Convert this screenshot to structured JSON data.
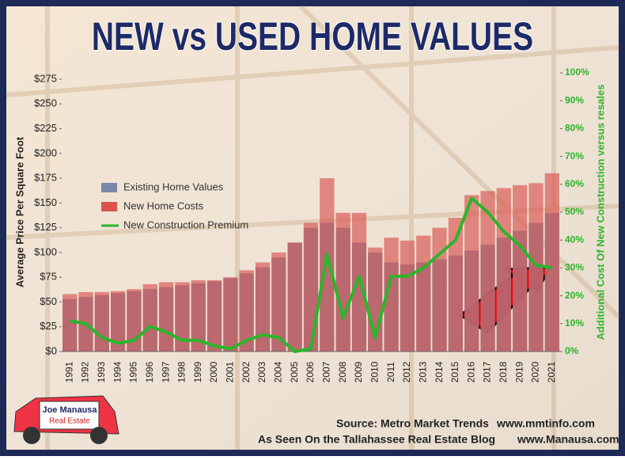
{
  "chart_data": {
    "type": "bar",
    "title": "NEW vs USED HOME VALUES",
    "y_label": "Average Price Per Square Foot",
    "y2_label": "Additional Cost Of New Construction versus resales",
    "categories": [
      "1991",
      "1992",
      "1993",
      "1994",
      "1995",
      "1996",
      "1997",
      "1998",
      "1999",
      "2000",
      "2001",
      "2002",
      "2003",
      "2004",
      "2005",
      "2006",
      "2007",
      "2008",
      "2009",
      "2010",
      "2011",
      "2012",
      "2013",
      "2014",
      "2015",
      "2016",
      "2017",
      "2018",
      "2019",
      "2020",
      "2021"
    ],
    "series": [
      {
        "name": "Existing Home Values",
        "color": "#7b86a8",
        "values": [
          53,
          55,
          57,
          59,
          61,
          63,
          65,
          67,
          69,
          71,
          74,
          79,
          85,
          95,
          110,
          125,
          130,
          125,
          110,
          100,
          90,
          88,
          90,
          93,
          97,
          102,
          108,
          115,
          122,
          130,
          140
        ]
      },
      {
        "name": "New Home Costs",
        "color": "#d9534f",
        "values": [
          58,
          60,
          60,
          61,
          63,
          68,
          70,
          70,
          72,
          72,
          75,
          82,
          90,
          100,
          110,
          130,
          175,
          140,
          140,
          105,
          115,
          112,
          117,
          125,
          135,
          158,
          162,
          165,
          168,
          170,
          180
        ]
      },
      {
        "name": "New Construction Premium",
        "color": "#2bb52b",
        "axis": "y2",
        "values": [
          11,
          10,
          5,
          3,
          4,
          9,
          7,
          4,
          4,
          2,
          1,
          4,
          6,
          5,
          0,
          1,
          35,
          12,
          27,
          5,
          27,
          27,
          30,
          35,
          40,
          55,
          50,
          43,
          38,
          31,
          30
        ]
      }
    ],
    "ylim": [
      0,
      275
    ],
    "yticks": [
      {
        "value": 0,
        "label": "$0"
      },
      {
        "value": 25,
        "label": "$25"
      },
      {
        "value": 50,
        "label": "$50"
      },
      {
        "value": 75,
        "label": "$75"
      },
      {
        "value": 100,
        "label": "$100"
      },
      {
        "value": 125,
        "label": "$125"
      },
      {
        "value": 150,
        "label": "$150"
      },
      {
        "value": 175,
        "label": "$175"
      },
      {
        "value": 200,
        "label": "$200"
      },
      {
        "value": 225,
        "label": "$225"
      },
      {
        "value": 250,
        "label": "$250"
      },
      {
        "value": 275,
        "label": "$275"
      }
    ],
    "y2lim": [
      0,
      100
    ],
    "y2ticks": [
      {
        "value": 0,
        "label": "0%"
      },
      {
        "value": 10,
        "label": "10%"
      },
      {
        "value": 20,
        "label": "20%"
      },
      {
        "value": 30,
        "label": "30%"
      },
      {
        "value": 40,
        "label": "40%"
      },
      {
        "value": 50,
        "label": "50%"
      },
      {
        "value": 60,
        "label": "60%"
      },
      {
        "value": 70,
        "label": "70%"
      },
      {
        "value": 80,
        "label": "80%"
      },
      {
        "value": 90,
        "label": "90%"
      },
      {
        "value": 100,
        "label": "100%"
      }
    ],
    "source": "Source: Metro Market Trends",
    "source_url": "www.mmtinfo.com",
    "blog": "As Seen On the Tallahassee Real Estate Blog",
    "blog_url": "www.Manausa.com",
    "logo": [
      "Joe Manausa",
      "Real Estate"
    ]
  }
}
